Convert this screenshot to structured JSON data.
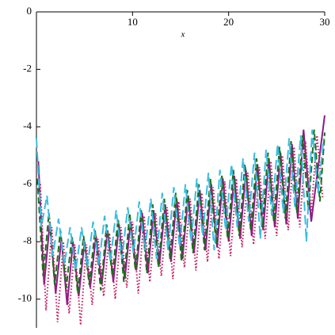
{
  "chart_data": {
    "type": "line",
    "x_label": "x",
    "xlim": [
      0,
      30
    ],
    "ylim": [
      -11,
      0
    ],
    "xticks": [
      10,
      20,
      30
    ],
    "yticks": [
      0,
      -2,
      -4,
      -6,
      -8,
      -10
    ],
    "series": [
      {
        "color": "#8b1a89",
        "dash": "none",
        "x": [
          0.2,
          0.8,
          1.4,
          2.0,
          2.6,
          3.2,
          3.8,
          4.4,
          5.0,
          5.6,
          6.2,
          6.8,
          7.4,
          8.0,
          8.6,
          9.2,
          9.8,
          10.4,
          11.0,
          11.6,
          12.2,
          12.8,
          13.4,
          14.0,
          14.6,
          15.2,
          15.8,
          16.4,
          17.0,
          17.6,
          18.2,
          18.8,
          19.4,
          20.0,
          20.6,
          21.2,
          21.8,
          22.4,
          23.0,
          23.6,
          24.2,
          24.8,
          25.4,
          26.0,
          26.6,
          27.2,
          27.8,
          28.6,
          30.0
        ],
        "values": [
          -5.2,
          -9.5,
          -7.3,
          -9.8,
          -7.9,
          -10.2,
          -8.0,
          -9.9,
          -8.0,
          -9.6,
          -7.8,
          -9.5,
          -7.6,
          -9.4,
          -7.4,
          -9.3,
          -7.3,
          -9.0,
          -7.0,
          -9.1,
          -6.9,
          -8.8,
          -6.7,
          -8.7,
          -6.5,
          -8.6,
          -6.4,
          -8.4,
          -6.2,
          -8.3,
          -6.0,
          -8.2,
          -5.8,
          -8.0,
          -5.7,
          -7.9,
          -5.5,
          -7.8,
          -5.3,
          -7.6,
          -5.1,
          -7.5,
          -4.9,
          -7.4,
          -4.6,
          -7.2,
          -4.1,
          -7.3,
          -3.6
        ]
      },
      {
        "color": "#c2185b",
        "dash": "1.5 2.5",
        "x": [
          0.4,
          1.0,
          1.6,
          2.2,
          2.8,
          3.4,
          4.0,
          4.6,
          5.2,
          5.8,
          6.4,
          7.0,
          7.6,
          8.2,
          8.8,
          9.4,
          10.0,
          10.6,
          11.2,
          11.8,
          12.4,
          13.0,
          13.6,
          14.2,
          14.8,
          15.4,
          16.0,
          16.6,
          17.2,
          17.8,
          18.4,
          19.0,
          19.6,
          20.2,
          20.8,
          21.4,
          22.0,
          22.6,
          23.2,
          23.8,
          24.4,
          25.0,
          25.6,
          26.2,
          26.8,
          27.4,
          28.0,
          28.6,
          29.2,
          29.8
        ],
        "values": [
          -6.0,
          -10.4,
          -7.5,
          -10.8,
          -8.0,
          -10.5,
          -8.1,
          -10.9,
          -8.1,
          -10.2,
          -7.9,
          -9.9,
          -7.7,
          -10.0,
          -7.5,
          -9.6,
          -7.3,
          -9.8,
          -7.1,
          -9.4,
          -7.0,
          -9.2,
          -6.8,
          -9.3,
          -6.6,
          -8.9,
          -6.5,
          -9.0,
          -6.3,
          -8.7,
          -6.1,
          -8.6,
          -5.9,
          -8.5,
          -5.8,
          -8.2,
          -5.6,
          -8.1,
          -5.4,
          -7.9,
          -5.2,
          -7.8,
          -5.0,
          -7.6,
          -4.7,
          -7.5,
          -4.5,
          -7.0,
          -4.3,
          -6.5
        ]
      },
      {
        "color": "#1b6e1b",
        "dash": "8 4",
        "x": [
          0.1,
          0.7,
          1.3,
          1.9,
          2.5,
          3.1,
          3.7,
          4.3,
          4.9,
          5.5,
          6.1,
          6.7,
          7.3,
          7.9,
          8.5,
          9.1,
          9.7,
          10.3,
          10.9,
          11.5,
          12.1,
          12.7,
          13.3,
          13.9,
          14.5,
          15.1,
          15.7,
          16.3,
          16.9,
          17.5,
          18.1,
          18.7,
          19.3,
          19.9,
          20.5,
          21.1,
          21.7,
          22.3,
          22.9,
          23.5,
          24.1,
          24.7,
          25.3,
          25.9,
          26.5,
          27.1,
          27.7,
          28.3,
          28.9,
          29.5,
          30.0
        ],
        "values": [
          -5.8,
          -9.2,
          -7.0,
          -9.5,
          -7.6,
          -9.6,
          -7.8,
          -9.8,
          -7.8,
          -9.5,
          -7.6,
          -9.7,
          -7.4,
          -9.2,
          -7.2,
          -9.4,
          -7.0,
          -9.0,
          -6.9,
          -9.1,
          -6.7,
          -8.9,
          -6.5,
          -8.6,
          -6.3,
          -8.7,
          -6.2,
          -8.4,
          -6.0,
          -8.3,
          -5.8,
          -8.1,
          -5.7,
          -7.9,
          -5.5,
          -7.8,
          -5.3,
          -7.6,
          -5.1,
          -7.5,
          -4.9,
          -7.3,
          -4.7,
          -7.2,
          -4.5,
          -7.0,
          -4.3,
          -6.9,
          -4.1,
          -6.6,
          -4.2
        ]
      },
      {
        "color": "#3bbde0",
        "dash": "12 5",
        "x": [
          0.0,
          0.5,
          1.1,
          1.7,
          2.3,
          2.9,
          3.5,
          4.1,
          4.7,
          5.3,
          5.9,
          6.5,
          7.1,
          7.7,
          8.3,
          8.9,
          9.5,
          10.1,
          10.7,
          11.3,
          11.9,
          12.5,
          13.1,
          13.7,
          14.3,
          14.9,
          15.5,
          16.1,
          16.7,
          17.3,
          17.9,
          18.5,
          19.1,
          19.7,
          20.3,
          20.9,
          21.5,
          22.1,
          22.7,
          23.3,
          23.9,
          24.5,
          25.1,
          25.7,
          26.3,
          26.9,
          27.5,
          28.1,
          28.7,
          29.3,
          29.9
        ],
        "values": [
          -4.4,
          -7.5,
          -6.4,
          -8.5,
          -7.2,
          -8.8,
          -7.5,
          -9.0,
          -7.5,
          -8.9,
          -7.3,
          -8.8,
          -7.1,
          -8.7,
          -6.9,
          -8.6,
          -6.8,
          -8.4,
          -6.6,
          -8.3,
          -6.5,
          -8.6,
          -6.3,
          -8.3,
          -6.1,
          -8.2,
          -6.0,
          -8.0,
          -5.8,
          -7.8,
          -5.6,
          -8.3,
          -5.5,
          -7.6,
          -5.3,
          -7.5,
          -5.1,
          -7.3,
          -4.9,
          -7.9,
          -4.8,
          -7.1,
          -4.6,
          -7.0,
          -4.4,
          -6.8,
          -4.3,
          -8.0,
          -4.1,
          -6.3,
          -4.4
        ]
      }
    ]
  }
}
